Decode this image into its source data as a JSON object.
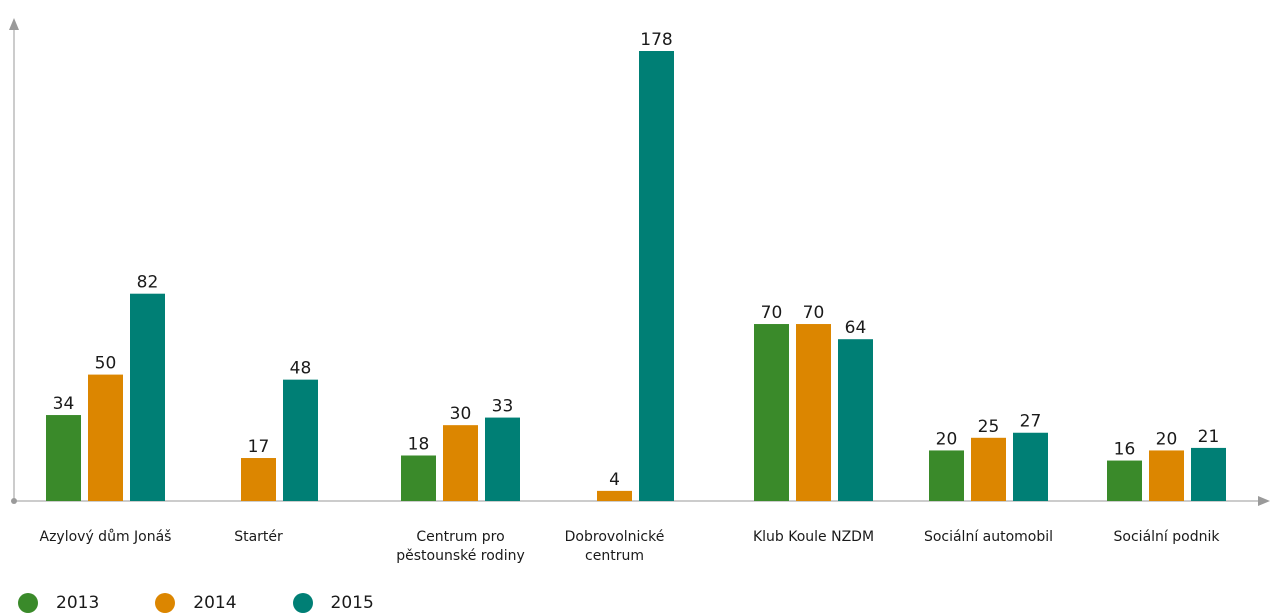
{
  "chart_data": {
    "type": "bar",
    "categories": [
      [
        "Azylový dům Jonáš"
      ],
      [
        "Startér"
      ],
      [
        "Centrum pro",
        "pěstounské rodiny"
      ],
      [
        "Dobrovolnické",
        "centrum"
      ],
      [
        "Klub Koule NZDM"
      ],
      [
        "Sociální automobil"
      ],
      [
        "Sociální podnik"
      ]
    ],
    "series": [
      {
        "name": "2013",
        "color": "#3a8a2a",
        "values": [
          34,
          null,
          18,
          null,
          70,
          20,
          16
        ]
      },
      {
        "name": "2014",
        "color": "#dc8600",
        "values": [
          50,
          17,
          30,
          4,
          70,
          25,
          20
        ]
      },
      {
        "name": "2015",
        "color": "#007f75",
        "values": [
          82,
          48,
          33,
          178,
          64,
          27,
          21
        ]
      }
    ],
    "ylim": [
      0,
      185
    ],
    "grid": false,
    "legend": "bottom-left",
    "title": "",
    "xlabel": "",
    "ylabel": ""
  }
}
